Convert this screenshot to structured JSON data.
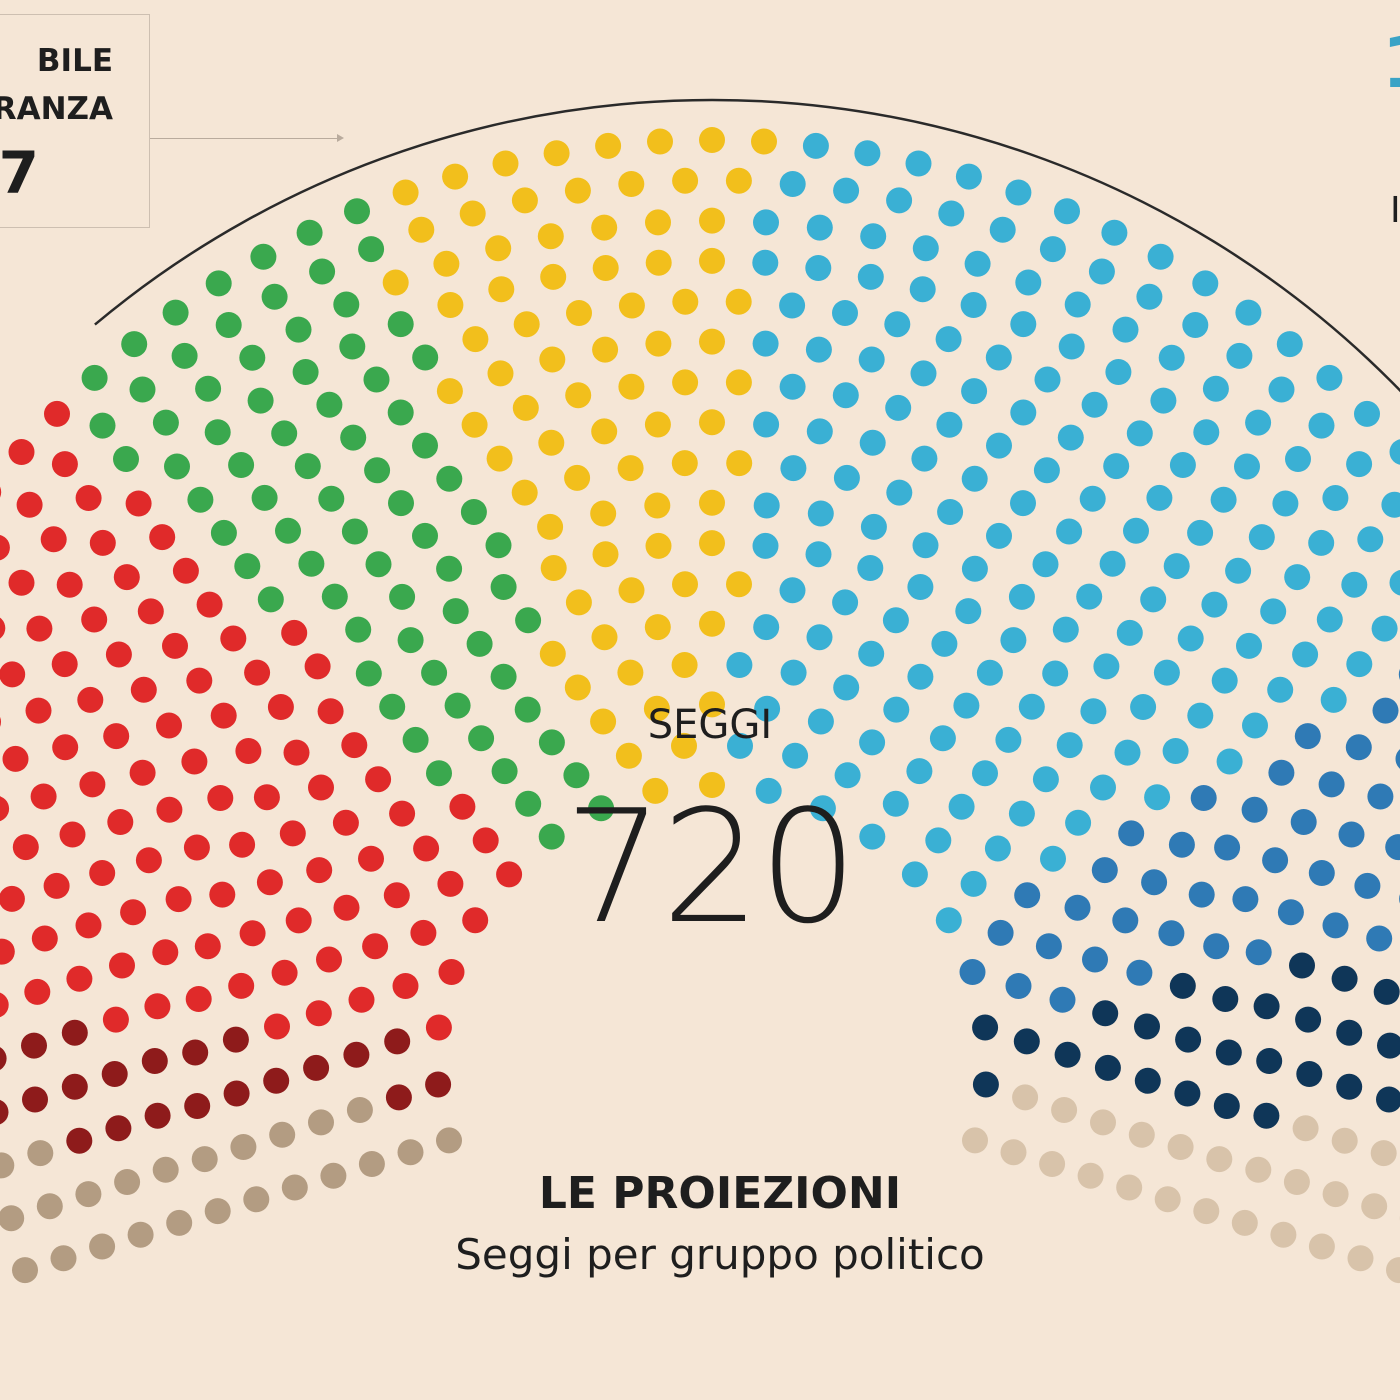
{
  "header": {
    "majority_line1": "BILE",
    "majority_line2": "RANZA",
    "majority_number": "7",
    "right_accent_text": "1",
    "right_edge_text": "I"
  },
  "center": {
    "seats_label": "SEGGI",
    "seats_total": "720"
  },
  "footer": {
    "title": "LE PROIEZIONI",
    "subtitle": "Seggi per gruppo politico"
  },
  "chart_data": {
    "type": "parliament",
    "total": 720,
    "series": [
      {
        "color": "#b39c82",
        "values": [
          39
        ]
      },
      {
        "color": "#8e1b1b",
        "values": [
          37
        ]
      },
      {
        "color": "#e02a2a",
        "values": [
          138
        ]
      },
      {
        "color": "#3aa84e",
        "values": [
          75
        ]
      },
      {
        "color": "#f2bf1c",
        "values": [
          82
        ]
      },
      {
        "color": "#3ab0d4",
        "values": [
          188
        ]
      },
      {
        "color": "#2f7ab5",
        "values": [
          65
        ]
      },
      {
        "color": "#0f3658",
        "values": [
          52
        ]
      },
      {
        "color": "#d8c3aa",
        "values": [
          44
        ]
      }
    ]
  }
}
